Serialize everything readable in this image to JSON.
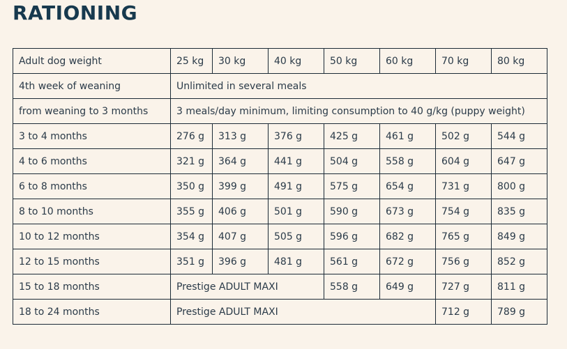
{
  "title": "RATIONING",
  "table": {
    "header": {
      "label": "Adult dog weight",
      "weights": [
        "25 kg",
        "30 kg",
        "40 kg",
        "50 kg",
        "60 kg",
        "70 kg",
        "80 kg"
      ]
    },
    "span_rows": [
      {
        "label": "4th week of weaning",
        "text": "Unlimited in several meals"
      },
      {
        "label": "from weaning to 3 months",
        "text": "3 meals/day minimum, limiting consumption to 40 g/kg (puppy weight)"
      }
    ],
    "rows": [
      {
        "label": "3 to 4 months",
        "values": [
          "276 g",
          "313 g",
          "376 g",
          "425 g",
          "461 g",
          "502 g",
          "544 g"
        ]
      },
      {
        "label": "4 to 6 months",
        "values": [
          "321 g",
          "364 g",
          "441 g",
          "504 g",
          "558 g",
          "604 g",
          "647 g"
        ]
      },
      {
        "label": "6 to 8 months",
        "values": [
          "350 g",
          "399 g",
          "491 g",
          "575 g",
          "654 g",
          "731 g",
          "800 g"
        ]
      },
      {
        "label": "8 to 10 months",
        "values": [
          "355 g",
          "406 g",
          "501 g",
          "590 g",
          "673 g",
          "754 g",
          "835 g"
        ]
      },
      {
        "label": "10 to 12 months",
        "values": [
          "354 g",
          "407 g",
          "505 g",
          "596 g",
          "682 g",
          "765 g",
          "849 g"
        ]
      },
      {
        "label": "12 to 15 months",
        "values": [
          "351 g",
          "396 g",
          "481 g",
          "561 g",
          "672 g",
          "756 g",
          "852 g"
        ]
      }
    ],
    "adult_rows": [
      {
        "label": "15 to 18 months",
        "product": "Prestige ADULT MAXI",
        "values": [
          "558 g",
          "649 g",
          "727 g",
          "811 g"
        ]
      },
      {
        "label": "18 to 24 months",
        "product": "Prestige ADULT MAXI",
        "values": [
          "712 g",
          "789 g"
        ]
      }
    ]
  }
}
